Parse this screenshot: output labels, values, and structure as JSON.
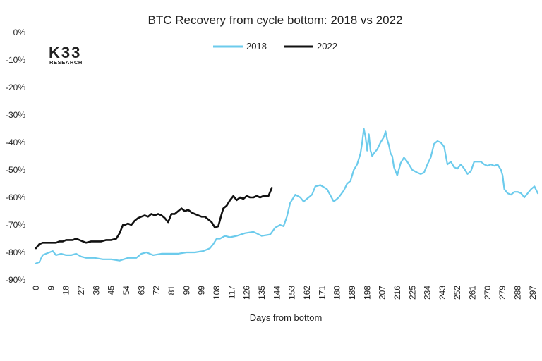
{
  "logo": {
    "main": "K33",
    "sub": "RESEARCH"
  },
  "chart_data": {
    "type": "line",
    "title": "BTC Recovery from cycle bottom: 2018 vs 2022",
    "xlabel": "Days from bottom",
    "ylabel": "",
    "xlim": [
      0,
      300
    ],
    "ylim": [
      -90,
      0
    ],
    "grid": false,
    "legend_position": "top-center",
    "x_ticks": [
      0,
      9,
      18,
      27,
      36,
      45,
      54,
      63,
      72,
      81,
      90,
      99,
      108,
      117,
      126,
      135,
      144,
      153,
      162,
      171,
      180,
      189,
      198,
      207,
      216,
      225,
      234,
      243,
      252,
      261,
      270,
      279,
      288,
      297
    ],
    "y_ticks": [
      0,
      -10,
      -20,
      -30,
      -40,
      -50,
      -60,
      -70,
      -80,
      -90
    ],
    "y_tick_labels": [
      "0%",
      "-10%",
      "-20%",
      "-30%",
      "-40%",
      "-50%",
      "-60%",
      "-70%",
      "-80%",
      "-90%"
    ],
    "series": [
      {
        "name": "2018",
        "color": "#6ccbec",
        "x": [
          0,
          2,
          4,
          6,
          8,
          10,
          12,
          15,
          18,
          21,
          24,
          27,
          30,
          35,
          40,
          45,
          50,
          55,
          60,
          63,
          66,
          70,
          75,
          80,
          85,
          90,
          95,
          100,
          104,
          106,
          108,
          110,
          113,
          116,
          120,
          125,
          130,
          135,
          140,
          143,
          146,
          148,
          150,
          152,
          155,
          158,
          160,
          162,
          165,
          167,
          170,
          174,
          178,
          181,
          184,
          186,
          188,
          190,
          192,
          193,
          194,
          195,
          196,
          197,
          198,
          199,
          200,
          201,
          202,
          204,
          206,
          208,
          209,
          210,
          211,
          212,
          213,
          214,
          216,
          218,
          220,
          222,
          225,
          228,
          230,
          232,
          234,
          236,
          238,
          240,
          242,
          244,
          246,
          248,
          250,
          252,
          254,
          256,
          258,
          260,
          262,
          264,
          266,
          268,
          270,
          272,
          274,
          276,
          278,
          279,
          280,
          282,
          284,
          286,
          288,
          290,
          292,
          294,
          296,
          298,
          300
        ],
        "values": [
          -84,
          -83.5,
          -81,
          -80.5,
          -80,
          -79.5,
          -81,
          -80.5,
          -81,
          -81,
          -80.5,
          -81.5,
          -82,
          -82,
          -82.5,
          -82.5,
          -83,
          -82,
          -82,
          -80.5,
          -80,
          -81,
          -80.5,
          -80.5,
          -80.5,
          -80,
          -80,
          -79.5,
          -78.5,
          -77,
          -75,
          -75,
          -74,
          -74.5,
          -74,
          -73,
          -72.5,
          -74,
          -73.5,
          -71,
          -70,
          -70.5,
          -67,
          -62,
          -59,
          -60,
          -61.5,
          -60.5,
          -59,
          -56,
          -55.5,
          -57,
          -61.5,
          -60,
          -57.5,
          -55,
          -54,
          -50,
          -48,
          -46,
          -44,
          -40,
          -35,
          -38,
          -43,
          -37,
          -43,
          -45,
          -44,
          -42.5,
          -40,
          -38,
          -36,
          -39,
          -41,
          -44,
          -45,
          -49,
          -52,
          -47.5,
          -45.5,
          -47,
          -50,
          -51,
          -51.5,
          -51,
          -48,
          -45.5,
          -40.5,
          -39.5,
          -40,
          -41.5,
          -48,
          -47,
          -49,
          -49.5,
          -48,
          -49.5,
          -51.5,
          -50.5,
          -47,
          -47,
          -47,
          -48,
          -48.5,
          -48,
          -48.5,
          -48,
          -50,
          -52,
          -57,
          -58.5,
          -59,
          -58,
          -58,
          -58.5,
          -60,
          -58.5,
          -57,
          -56,
          -58.5
        ]
      },
      {
        "name": "2022",
        "color": "#111111",
        "x": [
          0,
          2,
          4,
          6,
          8,
          10,
          12,
          14,
          16,
          18,
          20,
          22,
          24,
          26,
          28,
          30,
          33,
          36,
          39,
          42,
          45,
          48,
          50,
          52,
          53,
          55,
          57,
          59,
          61,
          63,
          65,
          67,
          69,
          71,
          73,
          75,
          77,
          79,
          81,
          83,
          85,
          87,
          89,
          91,
          93,
          95,
          97,
          99,
          101,
          103,
          105,
          107,
          109,
          111,
          112,
          114,
          116,
          118,
          120,
          122,
          124,
          126,
          128,
          130,
          132,
          134,
          136,
          137,
          139,
          141
        ],
        "values": [
          -78.5,
          -77,
          -76.5,
          -76.5,
          -76.5,
          -76.5,
          -76.5,
          -76,
          -76,
          -75.5,
          -75.5,
          -75.5,
          -75,
          -75.5,
          -76,
          -76.5,
          -76,
          -76,
          -76,
          -75.5,
          -75.5,
          -75,
          -73,
          -70,
          -70,
          -69.5,
          -70,
          -68.5,
          -67.5,
          -67,
          -66.5,
          -67,
          -66,
          -66.5,
          -66,
          -66.5,
          -67.5,
          -69,
          -66,
          -66,
          -65,
          -64,
          -65,
          -64.5,
          -65.5,
          -66,
          -66.5,
          -67,
          -67,
          -68,
          -69,
          -71,
          -70.5,
          -66,
          -64,
          -63,
          -61,
          -59.5,
          -61,
          -60,
          -60.5,
          -59.5,
          -60,
          -60,
          -59.5,
          -60,
          -59.5,
          -59.5,
          -59.5,
          -56.5
        ]
      }
    ]
  }
}
